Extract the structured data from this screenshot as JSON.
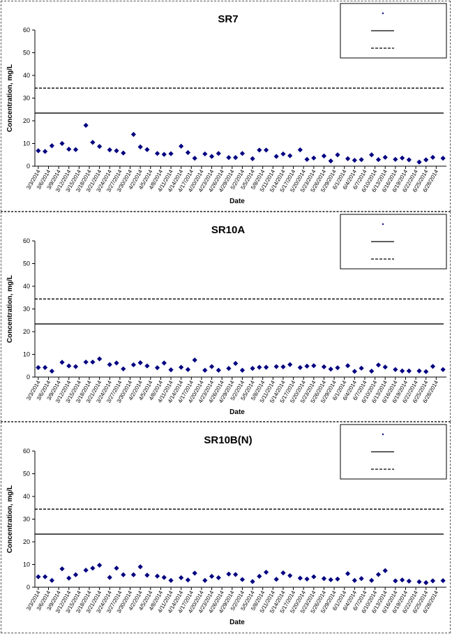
{
  "chart_data": [
    {
      "type": "scatter",
      "title": "SR7",
      "xlabel": "Date",
      "ylabel": "Concentration, mg/L",
      "ylim": [
        0,
        60
      ],
      "yticks": [
        0,
        10,
        20,
        30,
        40,
        50,
        60
      ],
      "x_tick_labels": [
        "3/3/2014",
        "3/6/2014",
        "3/9/2014",
        "3/12/2014",
        "3/15/2014",
        "3/18/2014",
        "3/21/2014",
        "3/24/2014",
        "3/27/2014",
        "3/30/2014",
        "4/2/2014",
        "4/5/2014",
        "4/8/2014",
        "4/11/2014",
        "4/14/2014",
        "4/17/2014",
        "4/20/2014",
        "4/23/2014",
        "4/26/2014",
        "4/29/2014",
        "5/2/2014",
        "5/5/2014",
        "5/8/2014",
        "5/11/2014",
        "5/14/2014",
        "5/17/2014",
        "5/20/2014",
        "5/23/2014",
        "5/26/2014",
        "5/29/2014",
        "6/1/2014",
        "6/4/2014",
        "6/7/2014",
        "6/10/2014",
        "6/13/2014",
        "6/16/2014",
        "6/19/2014",
        "6/22/2014",
        "6/25/2014",
        "6/28/2014"
      ],
      "legend_position": "top-right",
      "grid": false,
      "reference_lines": [
        {
          "style": "solid",
          "value": 23.4
        },
        {
          "style": "dashed",
          "value": 34.4
        }
      ],
      "series": [
        {
          "marker": "diamond",
          "color": "#000080",
          "x": [
            "3/3/2014",
            "3/5/2014",
            "3/7/2014",
            "3/10/2014",
            "3/12/2014",
            "3/14/2014",
            "3/17/2014",
            "3/19/2014",
            "3/21/2014",
            "3/24/2014",
            "3/26/2014",
            "3/28/2014",
            "3/31/2014",
            "4/2/2014",
            "4/4/2014",
            "4/7/2014",
            "4/9/2014",
            "4/11/2014",
            "4/14/2014",
            "4/16/2014",
            "4/18/2014",
            "4/21/2014",
            "4/23/2014",
            "4/25/2014",
            "4/28/2014",
            "4/30/2014",
            "5/2/2014",
            "5/5/2014",
            "5/7/2014",
            "5/9/2014",
            "5/12/2014",
            "5/14/2014",
            "5/16/2014",
            "5/19/2014",
            "5/21/2014",
            "5/23/2014",
            "5/26/2014",
            "5/28/2014",
            "5/30/2014",
            "6/2/2014",
            "6/4/2014",
            "6/6/2014",
            "6/9/2014",
            "6/11/2014",
            "6/13/2014",
            "6/16/2014",
            "6/18/2014",
            "6/20/2014",
            "6/23/2014",
            "6/25/2014",
            "6/27/2014",
            "6/30/2014"
          ],
          "values": [
            6.8,
            6.5,
            9.0,
            10.0,
            7.5,
            7.3,
            18.0,
            10.5,
            8.7,
            7.2,
            6.8,
            5.8,
            14.0,
            8.5,
            7.3,
            5.6,
            5.2,
            5.5,
            8.8,
            6.0,
            3.5,
            5.4,
            4.3,
            5.6,
            3.8,
            3.8,
            5.6,
            3.3,
            7.1,
            7.1,
            4.3,
            5.4,
            4.6,
            7.2,
            3.0,
            3.6,
            4.5,
            2.3,
            5.0,
            3.3,
            2.6,
            2.9,
            5.0,
            2.9,
            3.9,
            3.0,
            3.6,
            2.8,
            1.8,
            2.8,
            3.9,
            3.5
          ]
        }
      ]
    },
    {
      "type": "scatter",
      "title": "SR10A",
      "xlabel": "Date",
      "ylabel": "Concentration, mg/L",
      "ylim": [
        0,
        60
      ],
      "yticks": [
        0,
        10,
        20,
        30,
        40,
        50,
        60
      ],
      "x_tick_labels": [
        "3/3/2014",
        "3/6/2014",
        "3/9/2014",
        "3/12/2014",
        "3/15/2014",
        "3/18/2014",
        "3/21/2014",
        "3/24/2014",
        "3/27/2014",
        "3/30/2014",
        "4/2/2014",
        "4/5/2014",
        "4/8/2014",
        "4/11/2014",
        "4/14/2014",
        "4/17/2014",
        "4/20/2014",
        "4/23/2014",
        "4/26/2014",
        "4/29/2014",
        "5/2/2014",
        "5/5/2014",
        "5/8/2014",
        "5/11/2014",
        "5/14/2014",
        "5/17/2014",
        "5/20/2014",
        "5/23/2014",
        "5/26/2014",
        "5/29/2014",
        "6/1/2014",
        "6/4/2014",
        "6/7/2014",
        "6/10/2014",
        "6/13/2014",
        "6/16/2014",
        "6/19/2014",
        "6/22/2014",
        "6/25/2014",
        "6/28/2014"
      ],
      "legend_position": "top-right",
      "grid": false,
      "reference_lines": [
        {
          "style": "solid",
          "value": 23.4
        },
        {
          "style": "dashed",
          "value": 34.4
        }
      ],
      "series": [
        {
          "marker": "diamond",
          "color": "#000080",
          "x": [
            "3/3/2014",
            "3/5/2014",
            "3/7/2014",
            "3/10/2014",
            "3/12/2014",
            "3/14/2014",
            "3/17/2014",
            "3/19/2014",
            "3/21/2014",
            "3/24/2014",
            "3/26/2014",
            "3/28/2014",
            "3/31/2014",
            "4/2/2014",
            "4/4/2014",
            "4/7/2014",
            "4/9/2014",
            "4/11/2014",
            "4/14/2014",
            "4/16/2014",
            "4/18/2014",
            "4/21/2014",
            "4/23/2014",
            "4/25/2014",
            "4/28/2014",
            "4/30/2014",
            "5/2/2014",
            "5/5/2014",
            "5/7/2014",
            "5/9/2014",
            "5/12/2014",
            "5/14/2014",
            "5/16/2014",
            "5/19/2014",
            "5/21/2014",
            "5/23/2014",
            "5/26/2014",
            "5/28/2014",
            "5/30/2014",
            "6/2/2014",
            "6/4/2014",
            "6/6/2014",
            "6/9/2014",
            "6/11/2014",
            "6/13/2014",
            "6/16/2014",
            "6/18/2014",
            "6/20/2014",
            "6/23/2014",
            "6/25/2014",
            "6/27/2014",
            "6/30/2014"
          ],
          "values": [
            4.2,
            4.2,
            2.6,
            6.5,
            4.9,
            4.6,
            6.6,
            6.6,
            8.0,
            5.5,
            6.2,
            3.6,
            5.4,
            6.3,
            4.9,
            4.1,
            6.2,
            3.2,
            4.3,
            3.3,
            7.5,
            3.0,
            4.6,
            3.0,
            3.8,
            6.0,
            3.0,
            3.8,
            4.3,
            4.3,
            4.6,
            4.5,
            5.5,
            4.2,
            4.8,
            5.0,
            4.5,
            3.5,
            4.1,
            5.0,
            2.5,
            3.9,
            2.6,
            5.3,
            4.4,
            3.3,
            2.7,
            2.7,
            2.7,
            2.4,
            4.7,
            3.3
          ]
        }
      ]
    },
    {
      "type": "scatter",
      "title": "SR10B(N)",
      "xlabel": "Date",
      "ylabel": "Concentration, mg/L",
      "ylim": [
        0,
        60
      ],
      "yticks": [
        0,
        10,
        20,
        30,
        40,
        50,
        60
      ],
      "x_tick_labels": [
        "3/3/2014",
        "3/6/2014",
        "3/9/2014",
        "3/12/2014",
        "3/15/2014",
        "3/18/2014",
        "3/21/2014",
        "3/24/2014",
        "3/27/2014",
        "3/30/2014",
        "4/2/2014",
        "4/5/2014",
        "4/8/2014",
        "4/11/2014",
        "4/14/2014",
        "4/17/2014",
        "4/20/2014",
        "4/23/2014",
        "4/26/2014",
        "4/29/2014",
        "5/2/2014",
        "5/5/2014",
        "5/8/2014",
        "5/11/2014",
        "5/14/2014",
        "5/17/2014",
        "5/20/2014",
        "5/23/2014",
        "5/26/2014",
        "5/29/2014",
        "6/1/2014",
        "6/4/2014",
        "6/7/2014",
        "6/10/2014",
        "6/13/2014",
        "6/16/2014",
        "6/19/2014",
        "6/22/2014",
        "6/25/2014",
        "6/28/2014"
      ],
      "legend_position": "top-right",
      "grid": false,
      "reference_lines": [
        {
          "style": "solid",
          "value": 23.4
        },
        {
          "style": "dashed",
          "value": 34.4
        }
      ],
      "series": [
        {
          "marker": "diamond",
          "color": "#000080",
          "x": [
            "3/3/2014",
            "3/5/2014",
            "3/7/2014",
            "3/10/2014",
            "3/12/2014",
            "3/14/2014",
            "3/17/2014",
            "3/19/2014",
            "3/21/2014",
            "3/24/2014",
            "3/26/2014",
            "3/28/2014",
            "3/31/2014",
            "4/2/2014",
            "4/4/2014",
            "4/7/2014",
            "4/9/2014",
            "4/11/2014",
            "4/14/2014",
            "4/16/2014",
            "4/18/2014",
            "4/21/2014",
            "4/23/2014",
            "4/25/2014",
            "4/28/2014",
            "4/30/2014",
            "5/2/2014",
            "5/5/2014",
            "5/7/2014",
            "5/9/2014",
            "5/12/2014",
            "5/14/2014",
            "5/16/2014",
            "5/19/2014",
            "5/21/2014",
            "5/23/2014",
            "5/26/2014",
            "5/28/2014",
            "5/30/2014",
            "6/2/2014",
            "6/4/2014",
            "6/6/2014",
            "6/9/2014",
            "6/11/2014",
            "6/13/2014",
            "6/16/2014",
            "6/18/2014",
            "6/20/2014",
            "6/23/2014",
            "6/25/2014",
            "6/27/2014",
            "6/30/2014"
          ],
          "values": [
            4.6,
            4.6,
            3.0,
            8.1,
            4.0,
            5.5,
            7.5,
            8.4,
            9.7,
            4.3,
            8.4,
            5.5,
            5.5,
            9.0,
            5.3,
            4.9,
            4.3,
            3.0,
            4.2,
            3.2,
            6.2,
            3.0,
            4.8,
            4.2,
            5.8,
            5.6,
            3.4,
            2.5,
            4.8,
            6.6,
            3.5,
            6.3,
            5.1,
            4.0,
            3.6,
            4.6,
            3.8,
            3.3,
            3.6,
            6.0,
            3.0,
            3.8,
            3.0,
            5.6,
            7.3,
            2.8,
            3.2,
            2.7,
            2.4,
            2.0,
            2.8,
            2.9
          ]
        }
      ]
    }
  ]
}
